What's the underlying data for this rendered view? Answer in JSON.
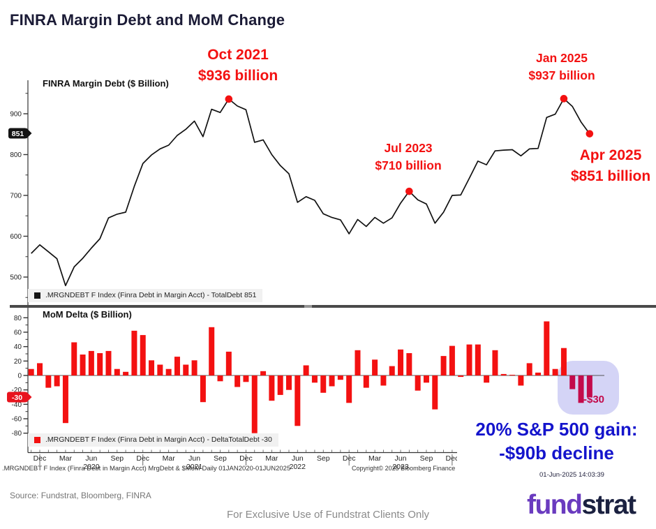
{
  "page": {
    "title": "FINRA Margin Debt and MoM Change"
  },
  "colors": {
    "red": "#f31111",
    "crimson": "#c30b4b",
    "blue": "#1414cc",
    "navy": "#1b1b36",
    "highlight": "#b9b9f0",
    "purple": "#6a3bbf",
    "logo_navy": "#1b2140",
    "line": "#111111",
    "axis": "#333333",
    "tag_black": "#141414",
    "tag_red": "#e8141e"
  },
  "top_chart": {
    "label": "FINRA Margin Debt ($ Billion)",
    "legend": ".MRGNDEBT F Index (Finra Debt in Margin Acct) - TotalDebt 851",
    "axis_tag": "851"
  },
  "bottom_chart": {
    "label": "MoM Delta ($ Billion)",
    "legend": ".MRGNDEBT F Index (Finra Debt in Margin Acct) - DeltaTotalDebt -30",
    "axis_tag": "-30",
    "highlight_label": "-$30"
  },
  "callouts": {
    "oct2021": {
      "l1": "Oct 2021",
      "l2": "$936 billion"
    },
    "jul2023": {
      "l1": "Jul 2023",
      "l2": "$710 billion"
    },
    "jan2025": {
      "l1": "Jan 2025",
      "l2": "$937 billion"
    },
    "apr2025": {
      "l1": "Apr 2025",
      "l2": "$851 billion"
    }
  },
  "note": {
    "l1": "20% S&P 500 gain:",
    "l2": "-$90b decline",
    "timestamp": "01-Jun-2025 14:03:39"
  },
  "footer": {
    "index_line": ".MRGNDEBT F Index (Finra Debt in Margin Acct) MrgDebt & $MoM  Daily 01JAN2020-01JUN2025",
    "copyright": "Copyright© 2025 Bloomberg Finance L.P."
  },
  "source": "Source: Fundstrat, Bloomberg, FINRA",
  "disclaimer": "For Exclusive Use of Fundstrat Clients Only",
  "logo": {
    "part1": "fund",
    "part2": "strat"
  },
  "chart_data": [
    {
      "type": "line",
      "title": "FINRA Margin Debt ($ Billion)",
      "x_start": "Nov 2019",
      "x_end": "Apr 2025",
      "frequency": "monthly",
      "ylim": [
        450,
        950
      ],
      "yticks": [
        900,
        800,
        700,
        600,
        500
      ],
      "yticks_minor": [
        950,
        850,
        750,
        650,
        550,
        450
      ],
      "grid": false,
      "last_value_tag": 851,
      "values": [
        558,
        579,
        562,
        545,
        479,
        525,
        546,
        571,
        594,
        645,
        654,
        659,
        722,
        778,
        799,
        814,
        823,
        847,
        862,
        882,
        844,
        911,
        903,
        936,
        919,
        910,
        830,
        836,
        800,
        773,
        753,
        683,
        697,
        688,
        655,
        646,
        640,
        606,
        641,
        624,
        646,
        632,
        645,
        681,
        710,
        689,
        679,
        632,
        659,
        700,
        701,
        742,
        784,
        775,
        809,
        811,
        812,
        797,
        814,
        815,
        891,
        899,
        937,
        918,
        880,
        851
      ],
      "marked_points": [
        {
          "month": "Oct 2021",
          "value": 936,
          "index": 23
        },
        {
          "month": "Jul 2023",
          "value": 710,
          "index": 44
        },
        {
          "month": "Jan 2025",
          "value": 937,
          "index": 62
        },
        {
          "month": "Apr 2025",
          "value": 851,
          "index": 65
        }
      ]
    },
    {
      "type": "bar",
      "title": "MoM Delta ($ Billion)",
      "x_start": "Nov 2019",
      "x_end": "Apr 2025",
      "frequency": "monthly",
      "ylim": [
        -90,
        90
      ],
      "yticks": [
        80,
        60,
        40,
        20,
        0,
        -20,
        -40,
        -60,
        -80
      ],
      "yticks_minor": [
        70,
        50,
        30,
        10,
        -10,
        -30,
        -50,
        -70
      ],
      "grid": false,
      "last_value_tag": -30,
      "highlighted_last_n": 3,
      "values": [
        9,
        17,
        -17,
        -15,
        -66,
        46,
        29,
        34,
        31,
        34,
        9,
        5,
        62,
        56,
        21,
        15,
        9,
        26,
        15,
        21,
        -37,
        67,
        -8,
        33,
        -16,
        -9,
        -80,
        6,
        -35,
        -27,
        -20,
        -70,
        14,
        -10,
        -24,
        -15,
        -6,
        -38,
        35,
        -17,
        22,
        -14,
        13,
        36,
        31,
        -21,
        -10,
        -47,
        27,
        41,
        -2,
        43,
        43,
        -10,
        35,
        2,
        1,
        -14,
        17,
        4,
        75,
        9,
        38,
        -19,
        -38,
        -30
      ]
    }
  ],
  "x_axis": {
    "quarter_cycle": [
      "Dec",
      "Mar",
      "Jun",
      "Sep"
    ],
    "first_quarter_index": 1,
    "last_quarter_index": 49,
    "years": [
      "2020",
      "2021",
      "2022",
      "2023"
    ],
    "year_indices": [
      7,
      19,
      31,
      43
    ],
    "year_tick_indices": [
      1,
      13,
      25,
      37,
      49
    ]
  }
}
